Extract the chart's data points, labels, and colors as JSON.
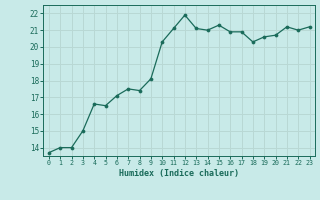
{
  "x": [
    0,
    1,
    2,
    3,
    4,
    5,
    6,
    7,
    8,
    9,
    10,
    11,
    12,
    13,
    14,
    15,
    16,
    17,
    18,
    19,
    20,
    21,
    22,
    23
  ],
  "y": [
    13.7,
    14.0,
    14.0,
    15.0,
    16.6,
    16.5,
    17.1,
    17.5,
    17.4,
    18.1,
    20.3,
    21.1,
    21.9,
    21.1,
    21.0,
    21.3,
    20.9,
    20.9,
    20.3,
    20.6,
    20.7,
    21.2,
    21.0,
    21.2
  ],
  "xlabel": "Humidex (Indice chaleur)",
  "ylim": [
    13.5,
    22.5
  ],
  "xlim": [
    -0.5,
    23.5
  ],
  "yticks": [
    14,
    15,
    16,
    17,
    18,
    19,
    20,
    21,
    22
  ],
  "xticks": [
    0,
    1,
    2,
    3,
    4,
    5,
    6,
    7,
    8,
    9,
    10,
    11,
    12,
    13,
    14,
    15,
    16,
    17,
    18,
    19,
    20,
    21,
    22,
    23
  ],
  "line_color": "#1a6b5a",
  "marker_color": "#1a6b5a",
  "bg_color": "#c8eae8",
  "grid_color": "#b8d8d4",
  "axis_label_color": "#1a6b5a",
  "tick_label_color": "#1a6b5a"
}
